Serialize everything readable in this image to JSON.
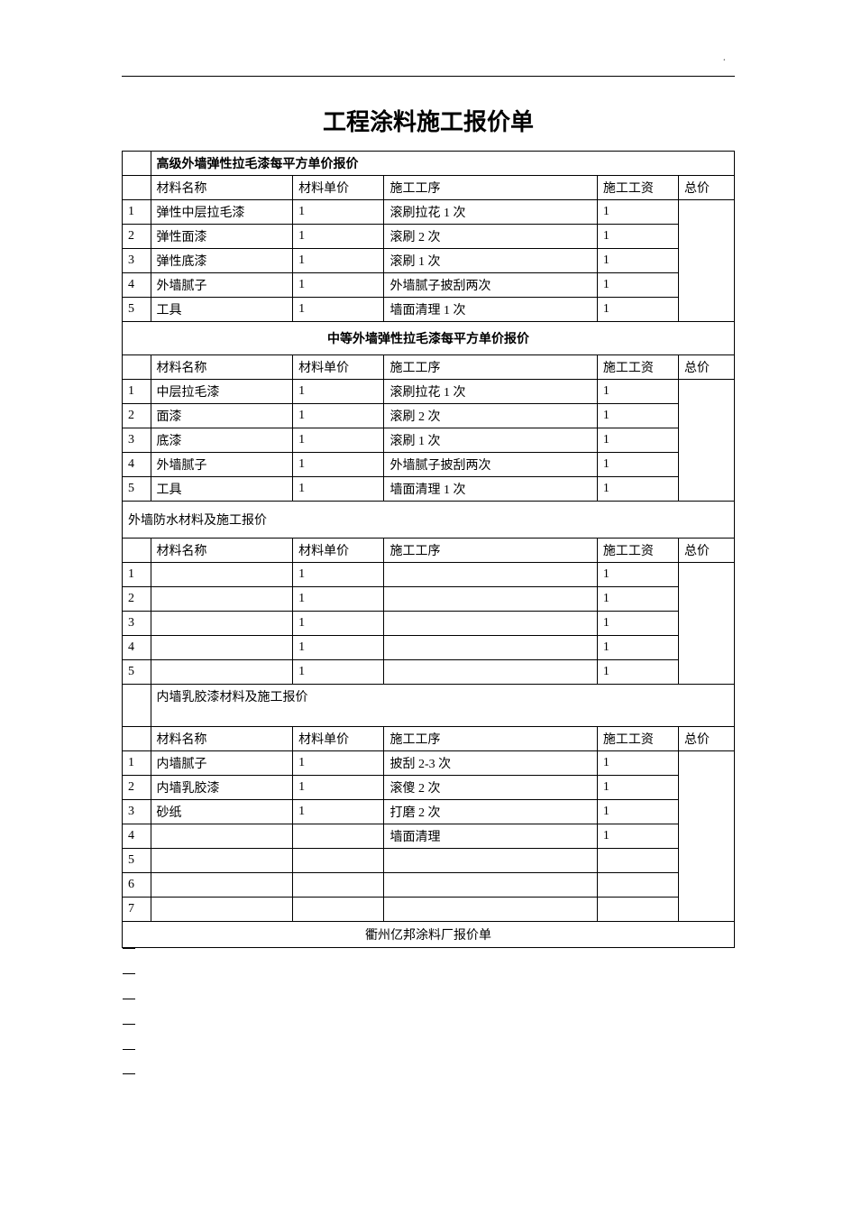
{
  "page_title": "工程涂料施工报价单",
  "headers": {
    "name": "材料名称",
    "price": "材料单价",
    "proc": "施工工序",
    "wage": "施工工资",
    "total": "总价"
  },
  "sections": [
    {
      "title": "高级外墙弹性拉毛漆每平方单价报价",
      "title_style": "bold-left",
      "rows": [
        {
          "idx": "1",
          "name": "弹性中层拉毛漆",
          "price": "1",
          "proc": "滚刷拉花 1 次",
          "wage": "1"
        },
        {
          "idx": "2",
          "name": "弹性面漆",
          "price": "1",
          "proc": "滚刷 2 次",
          "wage": "1"
        },
        {
          "idx": "3",
          "name": "弹性底漆",
          "price": "1",
          "proc": "滚刷 1 次",
          "wage": "1"
        },
        {
          "idx": "4",
          "name": "外墙腻子",
          "price": "1",
          "proc": "外墙腻子披刮两次",
          "wage": "1"
        },
        {
          "idx": "5",
          "name": "工具",
          "price": "1",
          "proc": "墙面清理 1 次",
          "wage": "1"
        }
      ]
    },
    {
      "title": "中等外墙弹性拉毛漆每平方单价报价",
      "title_style": "center",
      "rows": [
        {
          "idx": "1",
          "name": "中层拉毛漆",
          "price": "1",
          "proc": "滚刷拉花 1 次",
          "wage": "1"
        },
        {
          "idx": "2",
          "name": "面漆",
          "price": "1",
          "proc": "滚刷 2 次",
          "wage": "1"
        },
        {
          "idx": "3",
          "name": "底漆",
          "price": "1",
          "proc": "滚刷 1 次",
          "wage": "1"
        },
        {
          "idx": "4",
          "name": "外墙腻子",
          "price": "1",
          "proc": "外墙腻子披刮两次",
          "wage": "1"
        },
        {
          "idx": "5",
          "name": "工具",
          "price": "1",
          "proc": "墙面清理 1 次",
          "wage": "1"
        }
      ]
    },
    {
      "title": "外墙防水材料及施工报价",
      "title_style": "left-normal",
      "rows": [
        {
          "idx": "1",
          "name": "",
          "price": "1",
          "proc": "",
          "wage": "1"
        },
        {
          "idx": "2",
          "name": "",
          "price": "1",
          "proc": "",
          "wage": "1"
        },
        {
          "idx": "3",
          "name": "",
          "price": "1",
          "proc": "",
          "wage": "1"
        },
        {
          "idx": "4",
          "name": "",
          "price": "1",
          "proc": "",
          "wage": "1"
        },
        {
          "idx": "5",
          "name": "",
          "price": "1",
          "proc": "",
          "wage": "1"
        }
      ]
    },
    {
      "title": "内墙乳胶漆材料及施工报价",
      "title_style": "sub-left",
      "rows": [
        {
          "idx": "1",
          "name": "内墙腻子",
          "price": "1",
          "proc": "披刮 2-3 次",
          "wage": "1"
        },
        {
          "idx": "2",
          "name": "内墙乳胶漆",
          "price": "1",
          "proc": "滚傻 2 次",
          "wage": "1"
        },
        {
          "idx": "3",
          "name": "砂纸",
          "price": "1",
          "proc": "打磨 2 次",
          "wage": "1"
        },
        {
          "idx": "4",
          "name": "",
          "price": "",
          "proc": "墙面清理",
          "wage": "1"
        },
        {
          "idx": "5",
          "name": "",
          "price": "",
          "proc": "",
          "wage": ""
        },
        {
          "idx": "6",
          "name": "",
          "price": "",
          "proc": "",
          "wage": ""
        },
        {
          "idx": "7",
          "name": "",
          "price": "",
          "proc": "",
          "wage": ""
        }
      ]
    }
  ],
  "footer": "衢州亿邦涂料厂报价单",
  "tick_rows": 5,
  "colors": {
    "text": "#000000",
    "border": "#000000",
    "background": "#ffffff"
  }
}
